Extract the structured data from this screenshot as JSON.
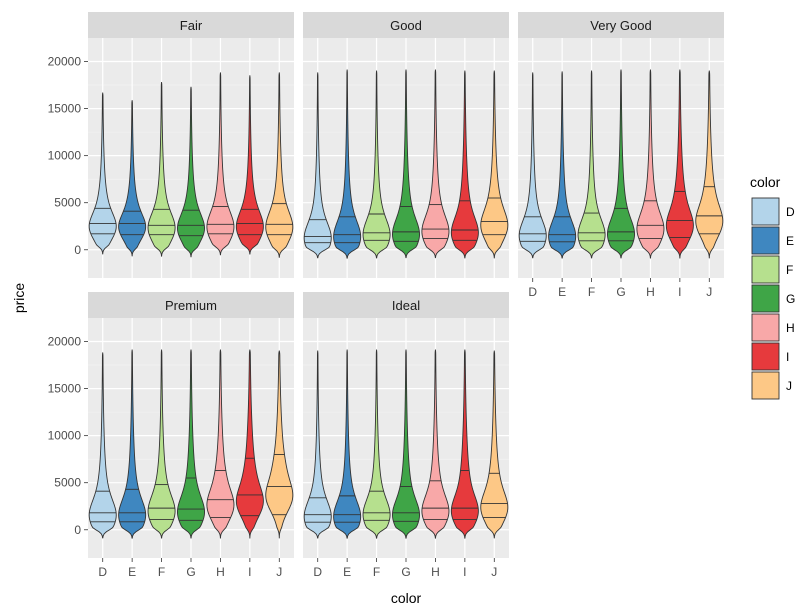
{
  "chart_data": {
    "type": "violin",
    "xlabel": "color",
    "ylabel": "price",
    "ylim": [
      -3000,
      22500
    ],
    "y_ticks": [
      0,
      5000,
      10000,
      15000,
      20000
    ],
    "y_tick_labels": [
      "0",
      "5000",
      "10000",
      "15000",
      "20000"
    ],
    "categories": [
      "D",
      "E",
      "F",
      "G",
      "H",
      "I",
      "J"
    ],
    "grid": true,
    "legend": {
      "title": "color",
      "position": "right",
      "entries": [
        "D",
        "E",
        "F",
        "G",
        "H",
        "I",
        "J"
      ]
    },
    "colors": {
      "D": "#b3d4ea",
      "E": "#3f87c0",
      "F": "#b6e08e",
      "G": "#3fa547",
      "H": "#f8a8a8",
      "I": "#e63a3d",
      "J": "#fdc886"
    },
    "panel_background": "#ebebeb",
    "strip_background": "#d9d9d9",
    "panels": [
      {
        "facet": "Fair",
        "violins": [
          {
            "color": "D",
            "min": 600,
            "q25": 1700,
            "median": 2800,
            "q75": 4400,
            "max": 16400
          },
          {
            "color": "E",
            "min": 350,
            "q25": 1600,
            "median": 2800,
            "q75": 4100,
            "max": 15600
          },
          {
            "color": "F",
            "min": 450,
            "q25": 1600,
            "median": 2600,
            "q75": 4300,
            "max": 17500
          },
          {
            "color": "G",
            "min": 350,
            "q25": 1500,
            "median": 2600,
            "q75": 4200,
            "max": 17000
          },
          {
            "color": "H",
            "min": 650,
            "q25": 1700,
            "median": 2700,
            "q75": 4600,
            "max": 18500
          },
          {
            "color": "I",
            "min": 700,
            "q25": 1600,
            "median": 2800,
            "q75": 4300,
            "max": 18200
          },
          {
            "color": "J",
            "min": 400,
            "q25": 1600,
            "median": 2700,
            "q75": 4900,
            "max": 18500
          }
        ]
      },
      {
        "facet": "Good",
        "violins": [
          {
            "color": "D",
            "min": 350,
            "q25": 750,
            "median": 1400,
            "q75": 3200,
            "max": 18500
          },
          {
            "color": "E",
            "min": 330,
            "q25": 750,
            "median": 1600,
            "q75": 3500,
            "max": 18800
          },
          {
            "color": "F",
            "min": 350,
            "q25": 1000,
            "median": 1800,
            "q75": 3800,
            "max": 18700
          },
          {
            "color": "G",
            "min": 380,
            "q25": 900,
            "median": 1900,
            "q75": 4600,
            "max": 18800
          },
          {
            "color": "H",
            "min": 370,
            "q25": 1200,
            "median": 2200,
            "q75": 4800,
            "max": 18800
          },
          {
            "color": "I",
            "min": 350,
            "q25": 1000,
            "median": 2100,
            "q75": 5200,
            "max": 18700
          },
          {
            "color": "J",
            "min": 350,
            "q25": 1600,
            "median": 3000,
            "q75": 5500,
            "max": 18700
          }
        ]
      },
      {
        "facet": "Very Good",
        "violins": [
          {
            "color": "D",
            "min": 350,
            "q25": 900,
            "median": 1700,
            "q75": 3500,
            "max": 18500
          },
          {
            "color": "E",
            "min": 330,
            "q25": 850,
            "median": 1600,
            "q75": 3500,
            "max": 18600
          },
          {
            "color": "F",
            "min": 350,
            "q25": 950,
            "median": 1800,
            "q75": 3900,
            "max": 18700
          },
          {
            "color": "G",
            "min": 350,
            "q25": 950,
            "median": 1900,
            "q75": 4400,
            "max": 18800
          },
          {
            "color": "H",
            "min": 340,
            "q25": 1200,
            "median": 2600,
            "q75": 5200,
            "max": 18800
          },
          {
            "color": "I",
            "min": 340,
            "q25": 1300,
            "median": 3100,
            "q75": 6200,
            "max": 18800
          },
          {
            "color": "J",
            "min": 340,
            "q25": 1700,
            "median": 3600,
            "q75": 6700,
            "max": 18700
          }
        ]
      },
      {
        "facet": "Premium",
        "violins": [
          {
            "color": "D",
            "min": 330,
            "q25": 850,
            "median": 1800,
            "q75": 4100,
            "max": 18500
          },
          {
            "color": "E",
            "min": 330,
            "q25": 850,
            "median": 1800,
            "q75": 4300,
            "max": 18800
          },
          {
            "color": "F",
            "min": 340,
            "q25": 1100,
            "median": 2300,
            "q75": 4800,
            "max": 18800
          },
          {
            "color": "G",
            "min": 340,
            "q25": 1000,
            "median": 2200,
            "q75": 5500,
            "max": 18800
          },
          {
            "color": "H",
            "min": 340,
            "q25": 1300,
            "median": 3200,
            "q75": 6300,
            "max": 18800
          },
          {
            "color": "I",
            "min": 340,
            "q25": 1500,
            "median": 3700,
            "q75": 7600,
            "max": 18800
          },
          {
            "color": "J",
            "min": 350,
            "q25": 1600,
            "median": 4600,
            "q75": 8000,
            "max": 18700
          }
        ]
      },
      {
        "facet": "Ideal",
        "violins": [
          {
            "color": "D",
            "min": 330,
            "q25": 800,
            "median": 1600,
            "q75": 3400,
            "max": 18700
          },
          {
            "color": "E",
            "min": 330,
            "q25": 800,
            "median": 1600,
            "q75": 3600,
            "max": 18800
          },
          {
            "color": "F",
            "min": 330,
            "q25": 1000,
            "median": 1800,
            "q75": 4100,
            "max": 18800
          },
          {
            "color": "G",
            "min": 330,
            "q25": 900,
            "median": 1800,
            "q75": 4600,
            "max": 18800
          },
          {
            "color": "H",
            "min": 330,
            "q25": 1100,
            "median": 2300,
            "q75": 5200,
            "max": 18800
          },
          {
            "color": "I",
            "min": 330,
            "q25": 1100,
            "median": 2300,
            "q75": 6300,
            "max": 18800
          },
          {
            "color": "J",
            "min": 340,
            "q25": 1300,
            "median": 2800,
            "q75": 6000,
            "max": 18700
          }
        ]
      }
    ]
  }
}
